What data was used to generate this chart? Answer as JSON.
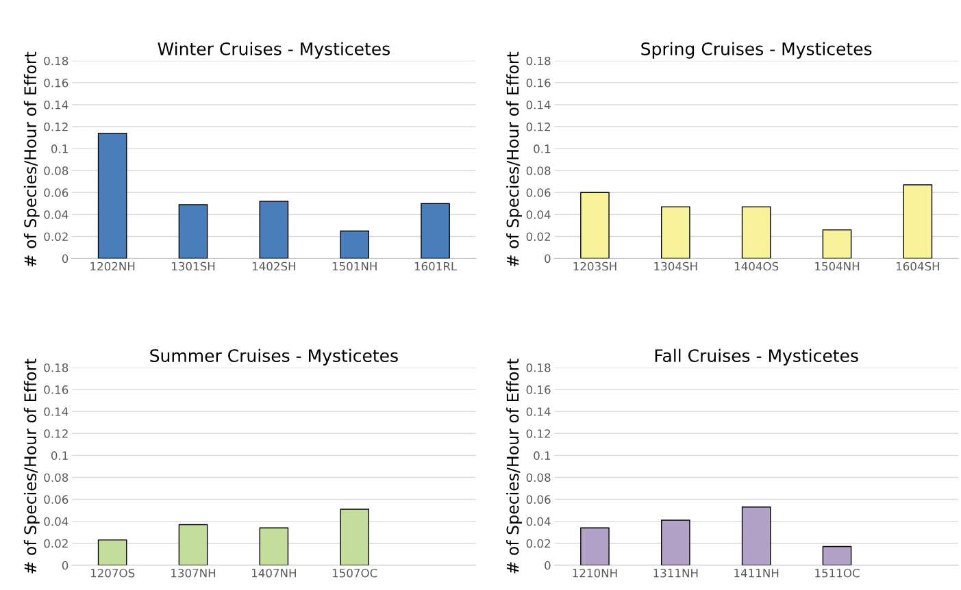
{
  "chart_data": [
    {
      "type": "bar",
      "title": "Winter Cruises - Mysticetes",
      "ylabel": "# of Species/Hour of Effort",
      "categories": [
        "1202NH",
        "1301SH",
        "1402SH",
        "1501NH",
        "1601RL"
      ],
      "values": [
        0.114,
        0.049,
        0.052,
        0.025,
        0.05
      ],
      "color": "#4a7ebb",
      "ylim": [
        0,
        0.18
      ],
      "yticks": [
        0,
        0.02,
        0.04,
        0.06,
        0.08,
        0.1,
        0.12,
        0.14,
        0.16,
        0.18
      ],
      "grid": "y"
    },
    {
      "type": "bar",
      "title": "Spring Cruises - Mysticetes",
      "ylabel": "# of Species/Hour of Effort",
      "categories": [
        "1203SH",
        "1304SH",
        "1404OS",
        "1504NH",
        "1604SH"
      ],
      "values": [
        0.06,
        0.047,
        0.047,
        0.026,
        0.067
      ],
      "color": "#f8f39a",
      "ylim": [
        0,
        0.18
      ],
      "yticks": [
        0,
        0.02,
        0.04,
        0.06,
        0.08,
        0.1,
        0.12,
        0.14,
        0.16,
        0.18
      ],
      "grid": "y"
    },
    {
      "type": "bar",
      "title": "Summer Cruises - Mysticetes",
      "ylabel": "# of Species/Hour of Effort",
      "categories": [
        "1207OS",
        "1307NH",
        "1407NH",
        "1507OC",
        null
      ],
      "values": [
        0.023,
        0.037,
        0.034,
        0.051,
        null
      ],
      "color": "#c4dc9c",
      "ylim": [
        0,
        0.18
      ],
      "yticks": [
        0,
        0.02,
        0.04,
        0.06,
        0.08,
        0.1,
        0.12,
        0.14,
        0.16,
        0.18
      ],
      "grid": "y"
    },
    {
      "type": "bar",
      "title": "Fall Cruises - Mysticetes",
      "ylabel": "# of Species/Hour of Effort",
      "categories": [
        "1210NH",
        "1311NH",
        "1411NH",
        "1511OC",
        null
      ],
      "values": [
        0.034,
        0.041,
        0.053,
        0.017,
        null
      ],
      "color": "#b3a2c7",
      "ylim": [
        0,
        0.18
      ],
      "yticks": [
        0,
        0.02,
        0.04,
        0.06,
        0.08,
        0.1,
        0.12,
        0.14,
        0.16,
        0.18
      ],
      "grid": "y"
    }
  ]
}
